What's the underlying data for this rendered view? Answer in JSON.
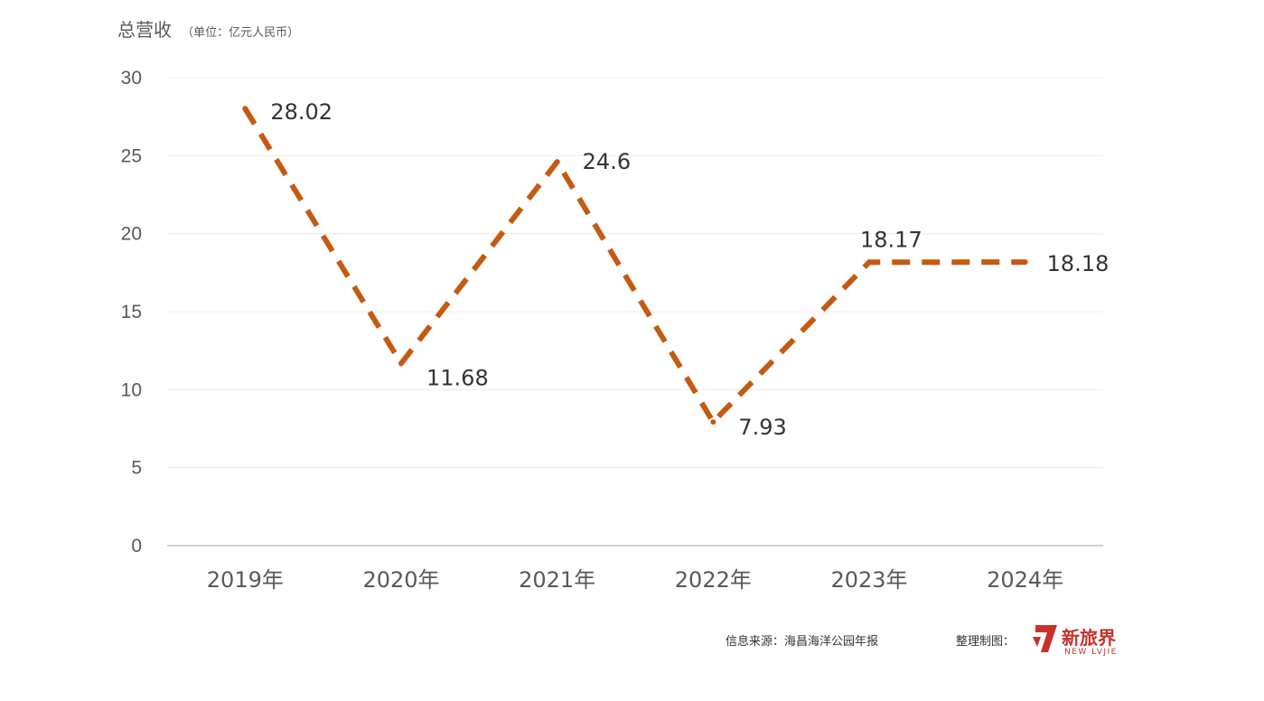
{
  "header": {
    "title": "总营收",
    "unit": "（单位：亿元人民币）"
  },
  "footer": {
    "source": "信息来源：海昌海洋公园年报",
    "made_by": "整理制图：",
    "logo_text_cn": "新旅界",
    "logo_text_en": "NEW LVJIE",
    "logo_color": "#c8312b"
  },
  "colors": {
    "series": "#c55a11",
    "tick_text": "#595959",
    "label_text": "#333333",
    "grid": "#ececec"
  },
  "chart_data": {
    "type": "line",
    "categories": [
      "2019年",
      "2020年",
      "2021年",
      "2022年",
      "2023年",
      "2024年"
    ],
    "series": [
      {
        "values": [
          28.02,
          11.68,
          24.6,
          7.93,
          18.17,
          18.18
        ],
        "labels": [
          "28.02",
          "11.68",
          "24.6",
          "7.93",
          "18.17",
          "18.18"
        ],
        "line_style": "dashed"
      }
    ],
    "yticks": [
      0,
      5,
      10,
      15,
      20,
      25,
      30
    ],
    "ylim": [
      0,
      30
    ],
    "grid": true,
    "legend": "none"
  }
}
